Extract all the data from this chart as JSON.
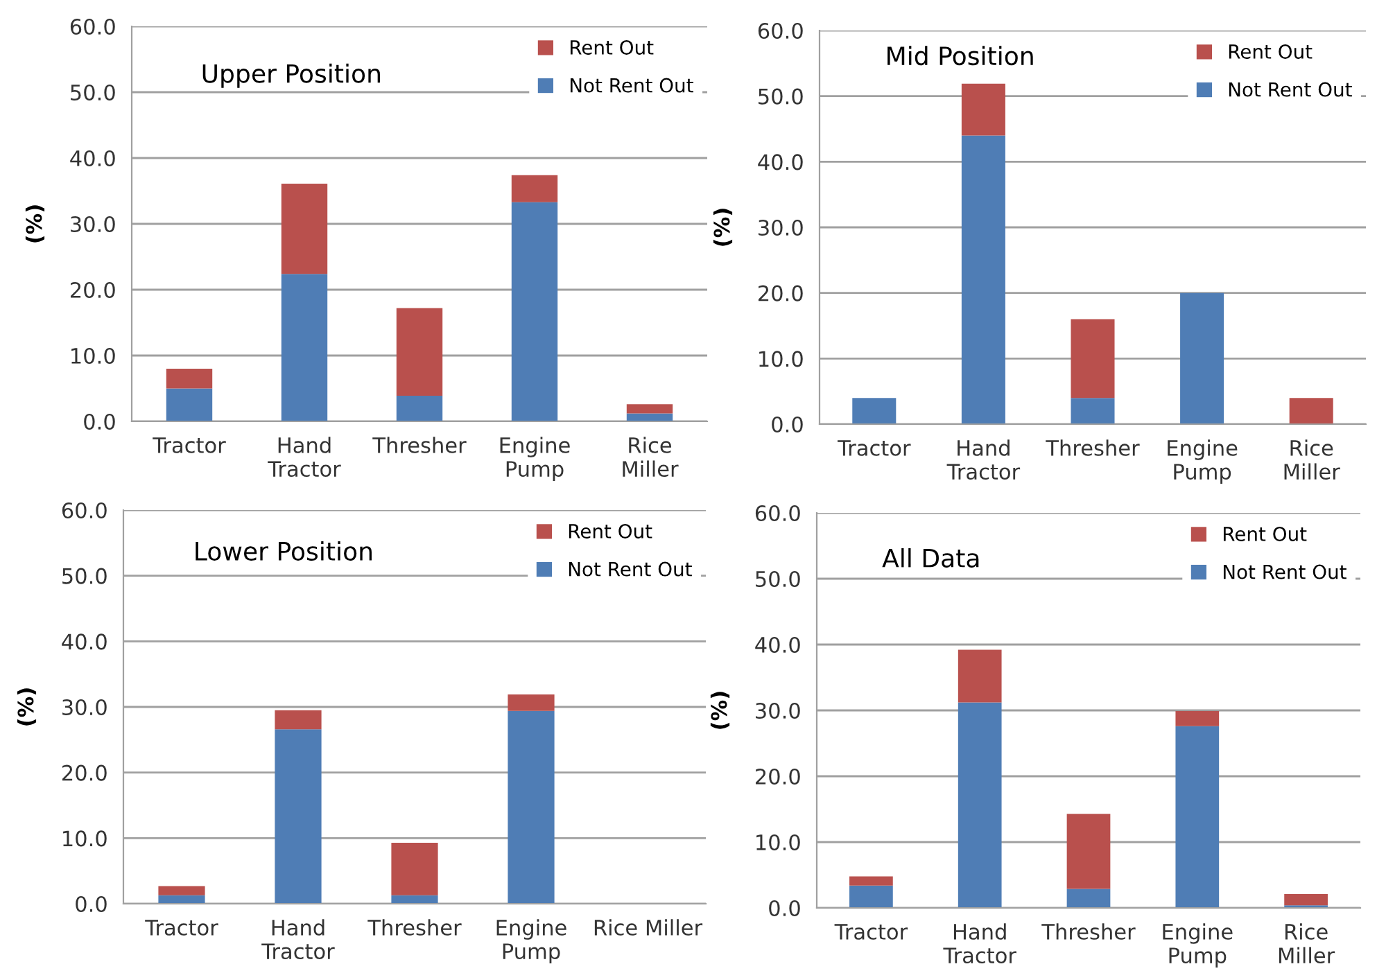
{
  "chart_data": [
    {
      "type": "bar",
      "title": "Upper Position",
      "ylabel": "(%)",
      "stacked": true,
      "categories": [
        "Tractor",
        "Hand\nTractor",
        "Thresher",
        "Engine\nPump",
        "Rice\nMiller"
      ],
      "series": [
        {
          "name": "Not Rent Out",
          "color": "#4f7db5",
          "values": [
            5.0,
            22.4,
            3.9,
            33.3,
            1.2
          ]
        },
        {
          "name": "Rent Out",
          "color": "#b9504d",
          "values": [
            3.0,
            13.7,
            13.3,
            4.1,
            1.4
          ]
        }
      ],
      "ylim": [
        0,
        60
      ],
      "yticks": [
        {
          "value": 0,
          "label": "0.0"
        },
        {
          "value": 10,
          "label": "10.0"
        },
        {
          "value": 20,
          "label": "20.0"
        },
        {
          "value": 30,
          "label": "30.0"
        },
        {
          "value": 40,
          "label": "40.0"
        },
        {
          "value": 50,
          "label": "50.0"
        },
        {
          "value": 60,
          "label": "60.0"
        }
      ],
      "grid": "y",
      "legend": "top right"
    },
    {
      "type": "bar",
      "title": "Mid Position",
      "ylabel": "(%)",
      "stacked": true,
      "categories": [
        "Tractor",
        "Hand\nTractor",
        "Thresher",
        "Engine\nPump",
        "Rice\nMiller"
      ],
      "series": [
        {
          "name": "Not Rent Out",
          "color": "#4f7db5",
          "values": [
            4.0,
            44.0,
            4.0,
            20.0,
            0
          ]
        },
        {
          "name": "Rent Out",
          "color": "#b9504d",
          "values": [
            0,
            7.9,
            12.0,
            0,
            4.0
          ]
        }
      ],
      "ylim": [
        0,
        60
      ],
      "yticks": [
        {
          "value": 0,
          "label": "0.0"
        },
        {
          "value": 10,
          "label": "10.0"
        },
        {
          "value": 20,
          "label": "20.0"
        },
        {
          "value": 30,
          "label": "30.0"
        },
        {
          "value": 40,
          "label": "40.0"
        },
        {
          "value": 50,
          "label": "50.0"
        },
        {
          "value": 60,
          "label": "60.0"
        }
      ],
      "grid": "y",
      "legend": "top right"
    },
    {
      "type": "bar",
      "title": "Lower Position",
      "ylabel": "(%)",
      "stacked": true,
      "categories": [
        "Tractor",
        "Hand\nTractor",
        "Thresher",
        "Engine\nPump",
        "Rice Miller"
      ],
      "series": [
        {
          "name": "Not Rent Out",
          "color": "#4f7db5",
          "values": [
            1.3,
            26.6,
            1.3,
            29.4,
            0
          ]
        },
        {
          "name": "Rent Out",
          "color": "#b9504d",
          "values": [
            1.4,
            2.9,
            8.0,
            2.5,
            0
          ]
        }
      ],
      "ylim": [
        0,
        60
      ],
      "yticks": [
        {
          "value": 0,
          "label": "0.0"
        },
        {
          "value": 10,
          "label": "10.0"
        },
        {
          "value": 20,
          "label": "20.0"
        },
        {
          "value": 30,
          "label": "30.0"
        },
        {
          "value": 40,
          "label": "40.0"
        },
        {
          "value": 50,
          "label": "50.0"
        },
        {
          "value": 60,
          "label": "60.0"
        }
      ],
      "grid": "y",
      "legend": "top right"
    },
    {
      "type": "bar",
      "title": "All Data",
      "ylabel": "(%)",
      "stacked": true,
      "categories": [
        "Tractor",
        "Hand\nTractor",
        "Thresher",
        "Engine\nPump",
        "Rice\nMiller"
      ],
      "series": [
        {
          "name": "Not Rent Out",
          "color": "#4f7db5",
          "values": [
            3.4,
            31.2,
            2.9,
            27.6,
            0.4
          ]
        },
        {
          "name": "Rent Out",
          "color": "#b9504d",
          "values": [
            1.4,
            8.0,
            11.4,
            2.3,
            1.7
          ]
        }
      ],
      "ylim": [
        0,
        60
      ],
      "yticks": [
        {
          "value": 0,
          "label": "0.0"
        },
        {
          "value": 10,
          "label": "10.0"
        },
        {
          "value": 20,
          "label": "20.0"
        },
        {
          "value": 30,
          "label": "30.0"
        },
        {
          "value": 40,
          "label": "40.0"
        },
        {
          "value": 50,
          "label": "50.0"
        },
        {
          "value": 60,
          "label": "60.0"
        }
      ],
      "grid": "y",
      "legend": "top right"
    }
  ]
}
